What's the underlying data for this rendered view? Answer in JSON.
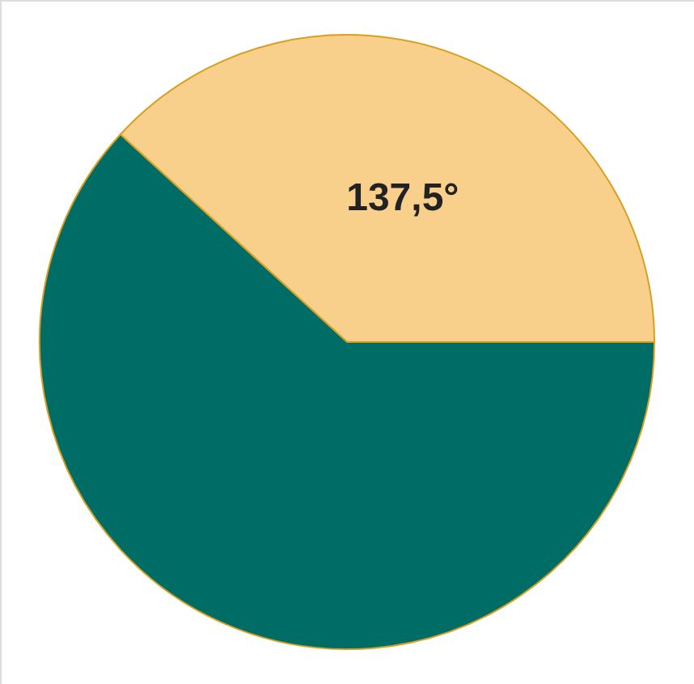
{
  "chart_data": {
    "type": "pie",
    "categories": [
      null,
      null
    ],
    "values": [
      137.5,
      222.5
    ],
    "colors": [
      "#f8d08c",
      "#006c66"
    ],
    "value_labels": [
      "137,5°",
      null
    ]
  }
}
